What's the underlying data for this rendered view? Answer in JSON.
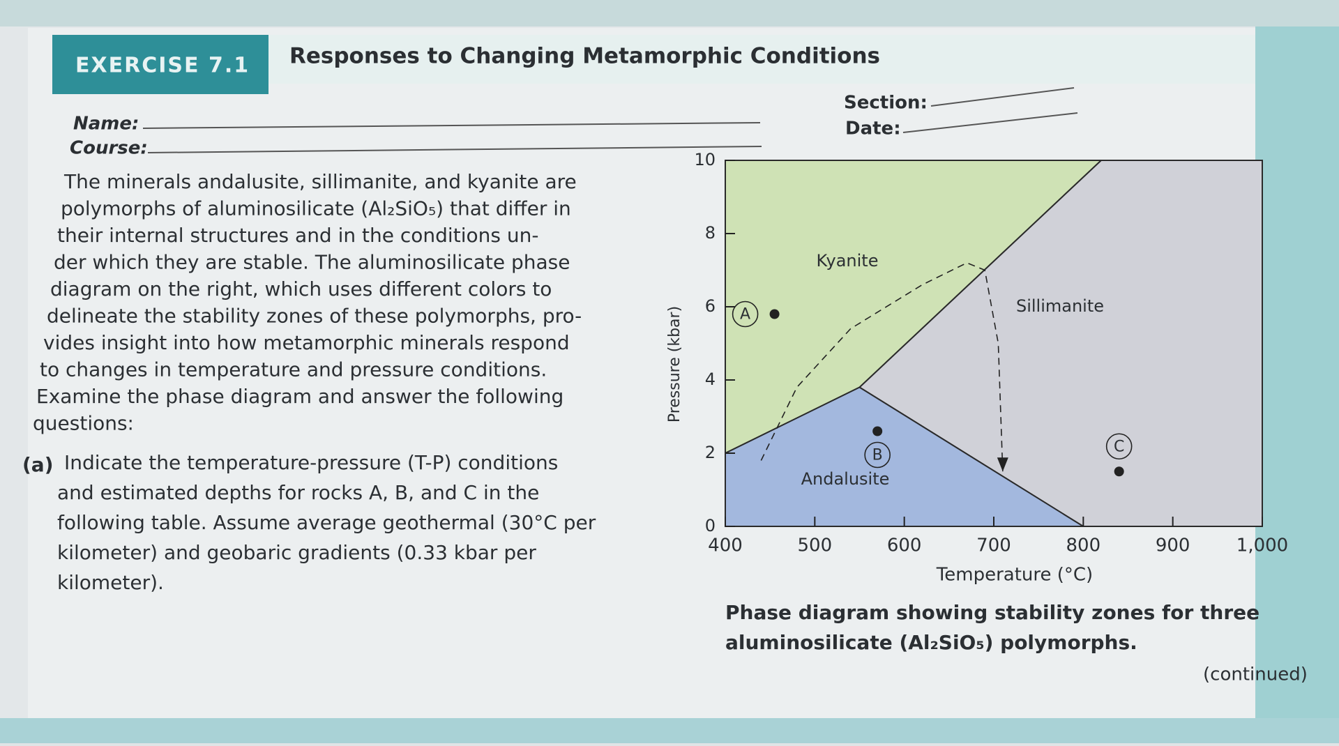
{
  "header": {
    "exercise": "EXERCISE 7.1",
    "title": "Responses to Changing Metamorphic Conditions"
  },
  "form": {
    "name": "Name:",
    "course": "Course:",
    "section": "Section:",
    "date": "Date:"
  },
  "intro": [
    "The minerals andalusite, sillimanite, and kyanite are",
    "polymorphs of aluminosilicate (Al₂SiO₅) that differ in",
    "their internal structures and in the conditions un-",
    "der which they are stable. The aluminosilicate phase",
    "diagram on the right, which uses different colors to",
    "delineate the stability zones of these polymorphs, pro-",
    "vides insight into how metamorphic minerals respond",
    "to changes in temperature and pressure conditions.",
    "Examine the phase diagram and answer the following",
    "questions:"
  ],
  "question": {
    "label": "(a)",
    "lines": [
      "Indicate the temperature-pressure (T-P) conditions",
      "and estimated depths for rocks A, B, and C in the",
      "following table. Assume average geothermal (30°C per",
      "kilometer) and geobaric gradients (0.33 kbar per",
      "kilometer)."
    ]
  },
  "caption": [
    "Phase diagram showing stability zones for three",
    "aluminosilicate (Al₂SiO₅) polymorphs."
  ],
  "footer": "(continued)",
  "chart_data": {
    "type": "phase-diagram",
    "x_label": "Temperature (°C)",
    "y_label": "Pressure (kbar)",
    "xlim": [
      400,
      1000
    ],
    "ylim": [
      0,
      10
    ],
    "xticks": [
      400,
      500,
      600,
      700,
      800,
      900,
      {
        "value": 1000,
        "label": "1,000"
      }
    ],
    "yticks": [
      0,
      2,
      4,
      6,
      8,
      10
    ],
    "regions": [
      {
        "name": "Kyanite",
        "color": "#cfe2b5",
        "x": [
          400,
          550,
          820,
          400
        ],
        "y": [
          2,
          3.8,
          10,
          10
        ]
      },
      {
        "name": "Sillimanite",
        "color": "#d0d1d8",
        "x": [
          550,
          820,
          1000,
          1000,
          800
        ],
        "y": [
          3.8,
          10,
          10,
          0,
          0
        ]
      },
      {
        "name": "Andalusite",
        "color": "#a3b8de",
        "x": [
          400,
          400,
          550,
          800
        ],
        "y": [
          0,
          2,
          3.8,
          0
        ]
      }
    ],
    "path": {
      "x": [
        440,
        480,
        540,
        620,
        670,
        690,
        705,
        710
      ],
      "y": [
        1.8,
        3.8,
        5.4,
        6.6,
        7.2,
        7.0,
        5.0,
        1.5
      ]
    },
    "points": [
      {
        "label": "A",
        "x": 455,
        "y": 5.8
      },
      {
        "label": "B",
        "x": 570,
        "y": 2.6
      },
      {
        "label": "C",
        "x": 840,
        "y": 1.5
      }
    ]
  }
}
